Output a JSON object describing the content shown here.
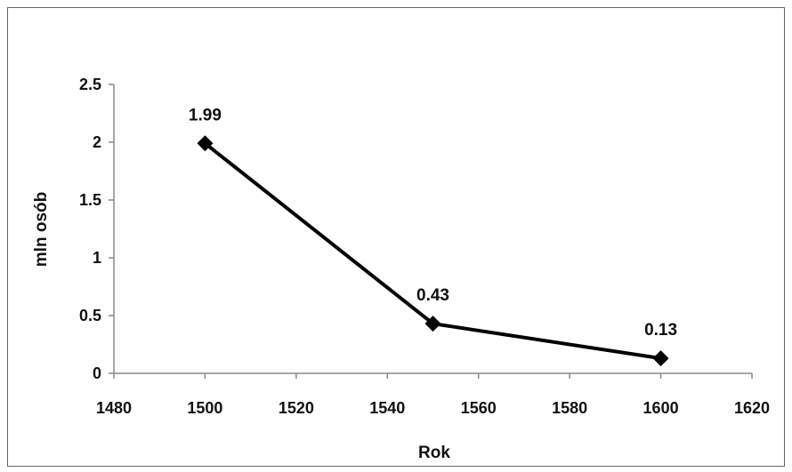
{
  "chart_data": {
    "type": "line",
    "title": "",
    "xlabel": "Rok",
    "ylabel": "mln osób",
    "x": [
      1500,
      1550,
      1600
    ],
    "series": [
      {
        "values": [
          1.99,
          0.43,
          0.13
        ],
        "data_labels": [
          "1.99",
          "0.43",
          "0.13"
        ]
      }
    ],
    "xlim": [
      1480,
      1620
    ],
    "ylim": [
      0,
      2.5
    ],
    "x_ticks": [
      1480,
      1500,
      1520,
      1540,
      1560,
      1580,
      1600,
      1620
    ],
    "x_tick_labels": [
      "1480",
      "1500",
      "1520",
      "1540",
      "1560",
      "1580",
      "1600",
      "1620"
    ],
    "y_ticks": [
      0,
      0.5,
      1,
      1.5,
      2,
      2.5
    ],
    "y_tick_labels": [
      "0",
      "0.5",
      "1",
      "1.5",
      "2",
      "2.5"
    ],
    "marker": "diamond",
    "line_color": "#000000",
    "grid": false,
    "legend": "none"
  }
}
